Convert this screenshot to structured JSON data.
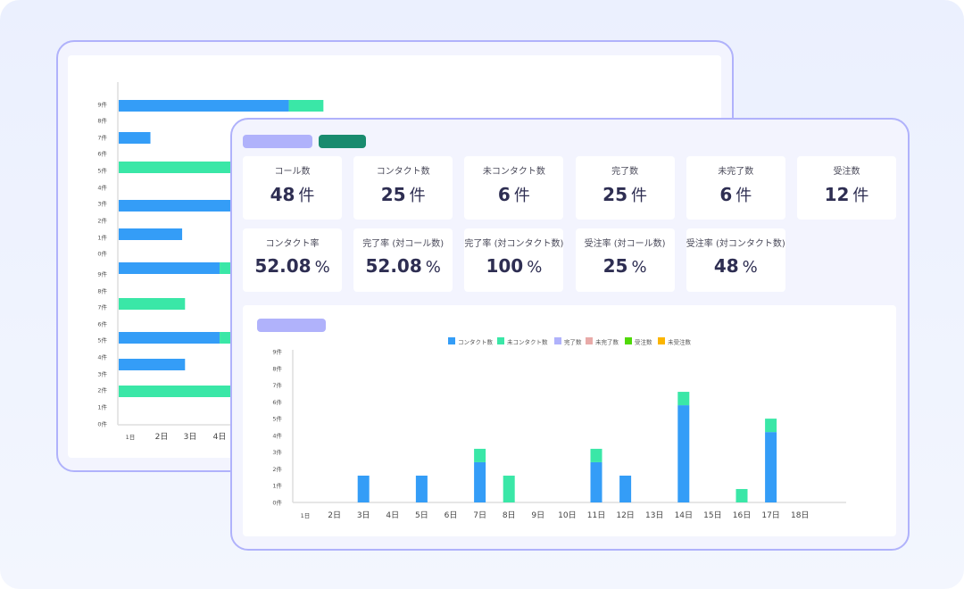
{
  "colors": {
    "contact": "#349df7",
    "non_contact": "#3ae7a7",
    "complete": "#b0b2fb",
    "incomplete": "#e8aaa8",
    "order": "#50d908",
    "non_order": "#fbb500",
    "accent_frame": "#b0b2fb",
    "teal_button": "#198b6e"
  },
  "summary_cards": [
    {
      "label": "コール数",
      "value": "48",
      "unit": "件"
    },
    {
      "label": "コンタクト数",
      "value": "25",
      "unit": "件"
    },
    {
      "label": "未コンタクト数",
      "value": "6",
      "unit": "件"
    },
    {
      "label": "完了数",
      "value": "25",
      "unit": "件"
    },
    {
      "label": "未完了数",
      "value": "6",
      "unit": "件"
    },
    {
      "label": "受注数",
      "value": "12",
      "unit": "件"
    }
  ],
  "rate_cards": [
    {
      "label": "コンタクト率",
      "value": "52.08",
      "unit": "%"
    },
    {
      "label": "完了率 (対コール数)",
      "value": "52.08",
      "unit": "%"
    },
    {
      "label": "完了率 (対コンタクト数)",
      "value": "100",
      "unit": "%"
    },
    {
      "label": "受注率 (対コール数)",
      "value": "25",
      "unit": "%"
    },
    {
      "label": "受注率 (対コンタクト数)",
      "value": "48",
      "unit": "%"
    }
  ],
  "chart_data": [
    {
      "type": "bar",
      "orientation": "vertical",
      "stacked": true,
      "title": "",
      "legend": [
        "コンタクト数",
        "未コンタクト数",
        "完了数",
        "未完了数",
        "受注数",
        "未受注数"
      ],
      "legend_position": "top-center",
      "categories": [
        "1日",
        "2日",
        "3日",
        "4日",
        "5日",
        "6日",
        "7日",
        "8日",
        "9日",
        "10日",
        "11日",
        "12日",
        "13日",
        "14日",
        "15日",
        "16日",
        "17日",
        "18日"
      ],
      "y_ticks": [
        "0件",
        "1件",
        "2件",
        "3件",
        "4件",
        "5件",
        "6件",
        "7件",
        "8件",
        "9件"
      ],
      "ylim": [
        0,
        9
      ],
      "series": [
        {
          "name": "コンタクト数",
          "values": [
            0,
            0,
            1.6,
            0,
            1.6,
            0,
            2.4,
            0,
            0,
            0,
            2.4,
            1.6,
            0,
            5.8,
            0,
            0,
            4.2,
            0
          ]
        },
        {
          "name": "未コンタクト数",
          "values": [
            0,
            0,
            0,
            0,
            0,
            0,
            0.8,
            1.6,
            0,
            0,
            0.8,
            0,
            0,
            0.8,
            0,
            0.8,
            0.8,
            0
          ]
        },
        {
          "name": "完了数",
          "values": [
            0,
            0,
            0,
            0,
            0,
            0,
            0,
            0,
            0,
            0,
            0,
            0,
            0,
            0,
            0,
            0,
            0,
            0
          ]
        },
        {
          "name": "未完了数",
          "values": [
            0,
            0,
            0,
            0,
            0,
            0,
            0,
            0,
            0,
            0,
            0,
            0,
            0,
            0,
            0,
            0,
            0,
            0
          ]
        },
        {
          "name": "受注数",
          "values": [
            0,
            0,
            0,
            0,
            0,
            0,
            0,
            0,
            0,
            0,
            0,
            0,
            0,
            0,
            0,
            0,
            0,
            0
          ]
        },
        {
          "name": "未受注数",
          "values": [
            0,
            0,
            0,
            0,
            0,
            0,
            0,
            0,
            0,
            0,
            0,
            0,
            0,
            0,
            0,
            0,
            0,
            0
          ]
        }
      ]
    },
    {
      "type": "bar",
      "orientation": "horizontal",
      "stacked": true,
      "title": "",
      "y_tick_labels": [
        "9件",
        "8件",
        "7件",
        "6件",
        "5件",
        "4件",
        "3件",
        "2件",
        "1件",
        "0件",
        "9件",
        "8件",
        "7件",
        "6件",
        "5件",
        "4件",
        "3件",
        "2件",
        "1件",
        "0件"
      ],
      "x_tick_labels": [
        "1日",
        "2日",
        "3日",
        "4日"
      ],
      "rows": [
        {
          "contact": 5.9,
          "non_contact": 1.2
        },
        {
          "contact": 1.1,
          "non_contact": 0
        },
        {
          "contact": 0,
          "non_contact": 4.0
        },
        {
          "contact": 4.0,
          "non_contact": 0
        },
        {
          "contact": 2.2,
          "non_contact": 0
        },
        {
          "contact": 3.5,
          "non_contact": 0.5
        },
        {
          "contact": 0,
          "non_contact": 2.3
        },
        {
          "contact": 3.5,
          "non_contact": 0.5
        },
        {
          "contact": 2.3,
          "non_contact": 0
        },
        {
          "contact": 0,
          "non_contact": 4.0
        }
      ]
    }
  ]
}
